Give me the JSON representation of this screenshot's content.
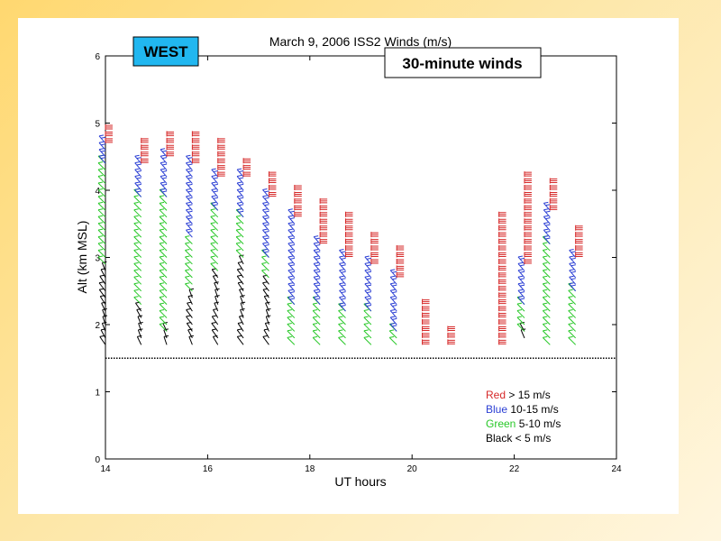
{
  "chart_data": {
    "type": "wind-barb",
    "title": "March 9, 2006    ISS2 Winds (m/s)",
    "xlabel": "UT hours",
    "ylabel": "Alt (km MSL)",
    "xlim": [
      14,
      24
    ],
    "ylim": [
      0,
      6
    ],
    "x_ticks": [
      "14",
      "16",
      "18",
      "20",
      "22",
      "24"
    ],
    "y_ticks": [
      "0",
      "1",
      "2",
      "3",
      "4",
      "5",
      "6"
    ],
    "grid": false,
    "annotations": {
      "site_label": "WEST",
      "interval_label": "30-minute winds"
    },
    "reference_line_altitude_km": 1.5,
    "legend": [
      {
        "color_word": "Red",
        "rest": " > 15 m/s",
        "color": "#d62828"
      },
      {
        "color_word": "Blue",
        "rest": " 10-15 m/s",
        "color": "#2b3fd4"
      },
      {
        "color_word": "Green",
        "rest": " 5-10 m/s",
        "color": "#28c828"
      },
      {
        "color_word": "Black",
        "rest": " < 5 m/s",
        "color": "#000000"
      }
    ],
    "profiles": [
      {
        "time_ut": 14.0,
        "levels": {
          "black": [
            1.7,
            2.8
          ],
          "green": [
            2.9,
            4.4
          ],
          "blue": [
            4.4,
            4.7
          ],
          "red": [
            4.7,
            4.95
          ]
        }
      },
      {
        "time_ut": 14.7,
        "levels": {
          "black": [
            1.7,
            2.2
          ],
          "green": [
            2.3,
            3.9
          ],
          "blue": [
            3.9,
            4.4
          ],
          "red": [
            4.4,
            4.7
          ]
        }
      },
      {
        "time_ut": 15.2,
        "levels": {
          "black": [
            1.7,
            1.9
          ],
          "green": [
            1.9,
            3.9
          ],
          "blue": [
            3.9,
            4.5
          ],
          "red": [
            4.5,
            4.8
          ]
        }
      },
      {
        "time_ut": 15.7,
        "levels": {
          "black": [
            1.7,
            2.4
          ],
          "green": [
            2.5,
            3.2
          ],
          "blue": [
            3.3,
            4.4
          ],
          "red": [
            4.4,
            4.8
          ]
        }
      },
      {
        "time_ut": 16.2,
        "levels": {
          "black": [
            1.7,
            2.7
          ],
          "green": [
            2.8,
            3.7
          ],
          "blue": [
            3.7,
            4.2
          ],
          "red": [
            4.2,
            4.7
          ]
        }
      },
      {
        "time_ut": 16.7,
        "levels": {
          "black": [
            1.7,
            2.9
          ],
          "green": [
            3.0,
            3.6
          ],
          "blue": [
            3.6,
            4.2
          ],
          "red": [
            4.2,
            4.45
          ]
        }
      },
      {
        "time_ut": 17.2,
        "levels": {
          "black": [
            1.7,
            2.6
          ],
          "green": [
            2.7,
            3.0
          ],
          "blue": [
            3.0,
            3.9
          ],
          "red": [
            3.9,
            4.25
          ]
        }
      },
      {
        "time_ut": 17.7,
        "levels": {
          "green": [
            1.7,
            2.3
          ],
          "blue": [
            2.3,
            3.6
          ],
          "red": [
            3.6,
            4.0
          ]
        }
      },
      {
        "time_ut": 18.2,
        "levels": {
          "green": [
            1.7,
            2.3
          ],
          "blue": [
            2.3,
            3.2
          ],
          "red": [
            3.2,
            3.8
          ]
        }
      },
      {
        "time_ut": 18.7,
        "levels": {
          "green": [
            1.7,
            2.2
          ],
          "blue": [
            2.2,
            3.0
          ],
          "red": [
            3.0,
            3.6
          ]
        }
      },
      {
        "time_ut": 19.2,
        "levels": {
          "green": [
            1.7,
            2.2
          ],
          "blue": [
            2.2,
            2.9
          ],
          "red": [
            2.9,
            3.3
          ]
        }
      },
      {
        "time_ut": 19.7,
        "levels": {
          "green": [
            1.7,
            1.9
          ],
          "blue": [
            1.9,
            2.7
          ],
          "red": [
            2.7,
            3.1
          ]
        }
      },
      {
        "time_ut": 20.2,
        "levels": {
          "red": [
            1.7,
            2.35
          ]
        }
      },
      {
        "time_ut": 20.7,
        "levels": {
          "red": [
            1.7,
            1.95
          ]
        }
      },
      {
        "time_ut": 21.7,
        "levels": {
          "red": [
            1.7,
            3.6
          ]
        }
      },
      {
        "time_ut": 22.2,
        "levels": {
          "black": [
            1.8,
            1.9
          ],
          "green": [
            1.9,
            2.3
          ],
          "blue": [
            2.3,
            2.9
          ],
          "red": [
            2.9,
            4.25
          ]
        }
      },
      {
        "time_ut": 22.7,
        "levels": {
          "green": [
            1.7,
            3.2
          ],
          "blue": [
            3.2,
            3.7
          ],
          "red": [
            3.7,
            4.1
          ]
        }
      },
      {
        "time_ut": 23.2,
        "levels": {
          "green": [
            1.7,
            2.5
          ],
          "blue": [
            2.5,
            3.0
          ],
          "red": [
            3.0,
            3.45
          ]
        }
      }
    ]
  }
}
